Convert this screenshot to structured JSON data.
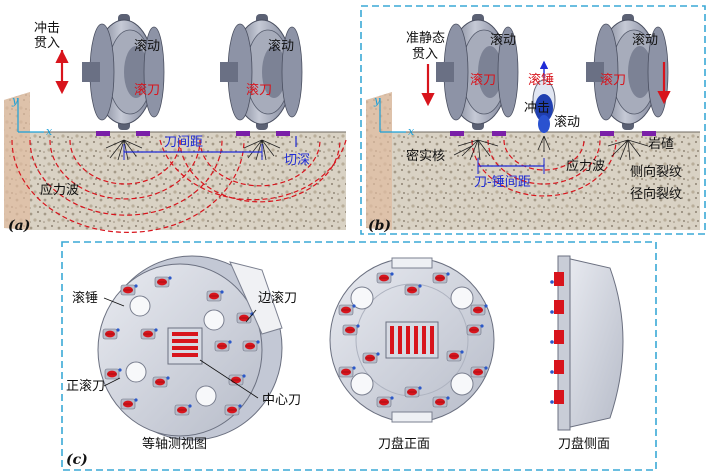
{
  "panel_a": {
    "tag": "(a)",
    "impact_penetration": [
      "冲击",
      "贯入"
    ],
    "rolling_left": "滚动",
    "rolling_right": "滚动",
    "cutter_left": "滚刀",
    "cutter_right": "滚刀",
    "cutter_spacing": "刀间距",
    "cut_depth": "切深",
    "stress_wave": "应力波",
    "axis_y": "y",
    "axis_x": "x"
  },
  "panel_b": {
    "tag": "(b)",
    "quasi_static": [
      "准静态",
      "贯入"
    ],
    "rolling_left": "滚动",
    "rolling_right": "滚动",
    "cutter_left": "滚刀",
    "cutter_right": "滚刀",
    "hammer": "滚锤",
    "impact": "冲击",
    "rolling_hammer": "滚动",
    "rock_chip": "岩碴",
    "dense_core": "密实核",
    "stress_wave": "应力波",
    "lateral_crack": "侧向裂纹",
    "radial_crack": "径向裂纹",
    "hammer_spacing": "刀-锤间距",
    "axis_y": "y",
    "axis_x": "x"
  },
  "panel_c": {
    "tag": "(c)",
    "hammer": "滚锤",
    "edge_cutter": "边滚刀",
    "face_cutter": "正滚刀",
    "center_cutter": "中心刀",
    "caption_iso": "等轴测视图",
    "caption_front": "刀盘正面",
    "caption_side": "刀盘侧面"
  },
  "colors": {
    "dash_border": "#3aa9d6",
    "red": "#d8141c",
    "blue": "#1f2bd6",
    "purple": "#7a1fa8",
    "steel": "#9aa1b6"
  }
}
